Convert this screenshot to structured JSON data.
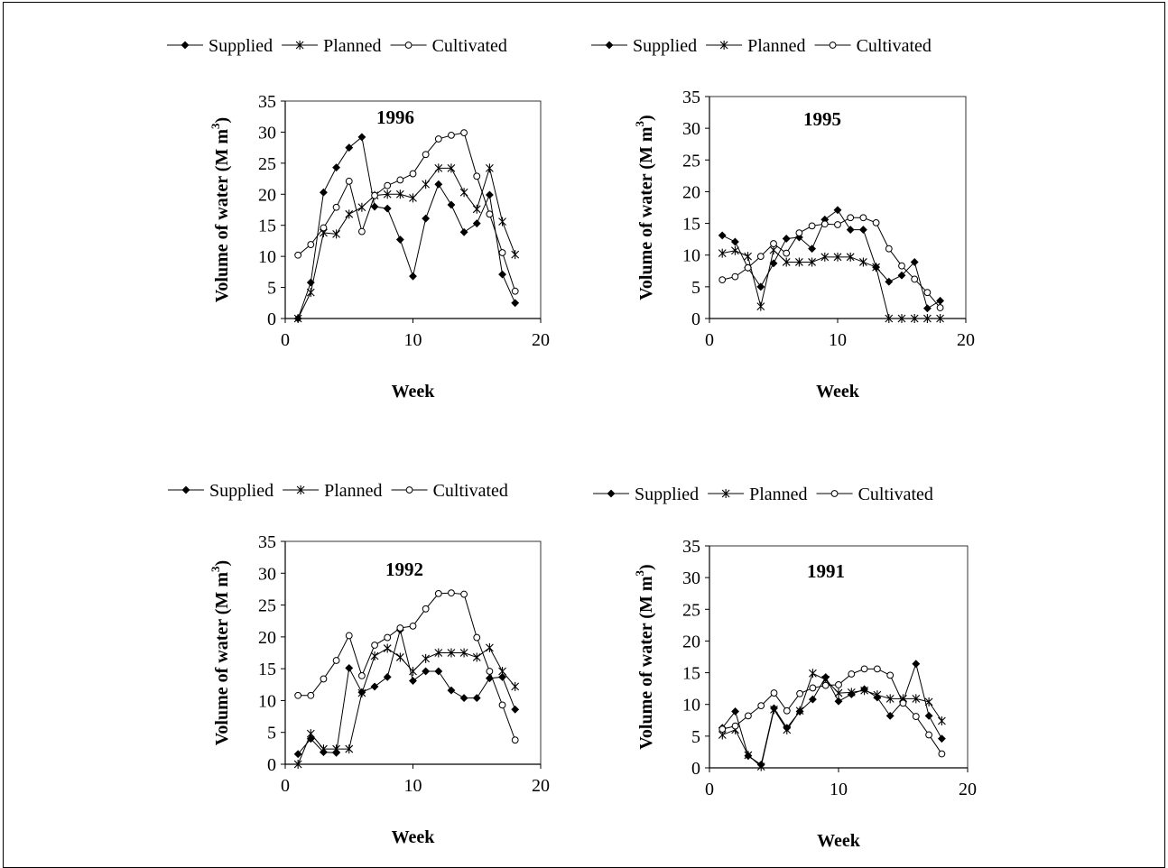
{
  "legend_labels": [
    "Supplied",
    "Planned",
    "Cultivated"
  ],
  "chart_data": [
    {
      "type": "line",
      "title": "1996",
      "xlabel": "Week",
      "ylabel": "Volume of water (M m",
      "ylabel_sup": "3",
      "ylabel_close": ")",
      "xlim": [
        0,
        20
      ],
      "ylim": [
        0,
        35
      ],
      "xticks": [
        0,
        10,
        20
      ],
      "yticks": [
        0,
        5,
        10,
        15,
        20,
        25,
        30,
        35
      ],
      "grid": false,
      "legend": "top",
      "x": [
        1,
        2,
        3,
        4,
        5,
        6,
        7,
        8,
        9,
        10,
        11,
        12,
        13,
        14,
        15,
        16,
        17,
        18
      ],
      "series": [
        {
          "name": "Supplied",
          "marker": "diamond",
          "values": [
            0,
            5.8,
            20.3,
            24.3,
            27.5,
            29.2,
            18,
            17.7,
            12.7,
            6.8,
            16.1,
            21.6,
            18.3,
            13.9,
            15.3,
            19.9,
            7.1,
            2.5
          ]
        },
        {
          "name": "Planned",
          "marker": "star",
          "values": [
            0,
            4.2,
            13.8,
            13.6,
            16.8,
            17.9,
            19.8,
            20,
            20,
            19.4,
            21.6,
            24.2,
            24.2,
            20.3,
            17.6,
            24.2,
            15.6,
            10.3
          ]
        },
        {
          "name": "Cultivated",
          "marker": "circle",
          "values": [
            10.2,
            11.9,
            14.6,
            17.9,
            22.1,
            14,
            19.8,
            21.4,
            22.3,
            23.3,
            26.4,
            28.9,
            29.5,
            29.9,
            22.9,
            16.8,
            10.6,
            4.4
          ]
        }
      ]
    },
    {
      "type": "line",
      "title": "1995",
      "xlabel": "Week",
      "ylabel": "Volume of water (M m",
      "ylabel_sup": "3",
      "ylabel_close": ")",
      "xlim": [
        0,
        20
      ],
      "ylim": [
        0,
        35
      ],
      "xticks": [
        0,
        10,
        20
      ],
      "yticks": [
        0,
        5,
        10,
        15,
        20,
        25,
        30,
        35
      ],
      "grid": false,
      "legend": "top",
      "x": [
        1,
        2,
        3,
        4,
        5,
        6,
        7,
        8,
        9,
        10,
        11,
        12,
        13,
        14,
        15,
        16,
        17,
        18
      ],
      "series": [
        {
          "name": "Supplied",
          "marker": "diamond",
          "values": [
            13.1,
            12.1,
            8,
            5,
            8.7,
            12.6,
            12.8,
            11,
            15.6,
            17.1,
            14,
            14,
            8.1,
            5.8,
            6.8,
            8.9,
            1.6,
            2.8
          ]
        },
        {
          "name": "Planned",
          "marker": "star",
          "values": [
            10.3,
            10.7,
            9.8,
            1.9,
            10.8,
            8.9,
            8.9,
            8.9,
            9.7,
            9.7,
            9.7,
            8.9,
            8.1,
            0,
            0,
            0,
            0,
            0
          ]
        },
        {
          "name": "Cultivated",
          "marker": "circle",
          "values": [
            6.1,
            6.6,
            8,
            9.8,
            11.8,
            10.3,
            13.5,
            14.6,
            14.9,
            14.8,
            15.9,
            15.9,
            15.1,
            11,
            8.3,
            6.2,
            4.1,
            1.7
          ]
        }
      ]
    },
    {
      "type": "line",
      "title": "1992",
      "xlabel": "Week",
      "ylabel": "Volume of water (M m",
      "ylabel_sup": "3",
      "ylabel_close": ")",
      "xlim": [
        0,
        20
      ],
      "ylim": [
        0,
        35
      ],
      "xticks": [
        0,
        10,
        20
      ],
      "yticks": [
        0,
        5,
        10,
        15,
        20,
        25,
        30,
        35
      ],
      "grid": false,
      "legend": "top",
      "x": [
        1,
        2,
        3,
        4,
        5,
        6,
        7,
        8,
        9,
        10,
        11,
        12,
        13,
        14,
        15,
        16,
        17,
        18
      ],
      "series": [
        {
          "name": "Supplied",
          "marker": "diamond",
          "values": [
            1.6,
            4,
            1.9,
            1.8,
            15.1,
            11.3,
            12.2,
            13.7,
            21.1,
            13.1,
            14.6,
            14.6,
            11.6,
            10.4,
            10.4,
            13.5,
            13.7,
            8.6
          ]
        },
        {
          "name": "Planned",
          "marker": "star",
          "values": [
            0,
            4.8,
            2.4,
            2.4,
            2.4,
            11.2,
            17,
            18.2,
            16.8,
            14.6,
            16.6,
            17.5,
            17.5,
            17.5,
            16.8,
            18.3,
            14.6,
            12.2
          ]
        },
        {
          "name": "Cultivated",
          "marker": "circle",
          "values": [
            10.8,
            10.8,
            13.4,
            16.3,
            20.2,
            13.9,
            18.7,
            19.9,
            21.4,
            21.7,
            24.4,
            26.8,
            26.9,
            26.7,
            19.9,
            14.6,
            9.3,
            3.8
          ]
        }
      ]
    },
    {
      "type": "line",
      "title": "1991",
      "xlabel": "Week",
      "ylabel": "Volume of water (M m",
      "ylabel_sup": "3",
      "ylabel_close": ")",
      "xlim": [
        0,
        20
      ],
      "ylim": [
        0,
        35
      ],
      "xticks": [
        0,
        10,
        20
      ],
      "yticks": [
        0,
        5,
        10,
        15,
        20,
        25,
        30,
        35
      ],
      "grid": false,
      "legend": "top",
      "x": [
        1,
        2,
        3,
        4,
        5,
        6,
        7,
        8,
        9,
        10,
        11,
        12,
        13,
        14,
        15,
        16,
        17,
        18
      ],
      "series": [
        {
          "name": "Supplied",
          "marker": "diamond",
          "values": [
            6.3,
            8.9,
            1.9,
            0.5,
            9.4,
            6.3,
            8.9,
            10.8,
            14.3,
            10.5,
            11.6,
            12.4,
            11.1,
            8.2,
            10.5,
            16.4,
            8.2,
            4.6
          ]
        },
        {
          "name": "Planned",
          "marker": "star",
          "values": [
            5.2,
            6,
            2,
            0.2,
            9.2,
            6,
            9,
            14.9,
            13.9,
            11.8,
            11.9,
            12.2,
            11.5,
            10.9,
            10.9,
            10.9,
            10.4,
            7.4
          ]
        },
        {
          "name": "Cultivated",
          "marker": "circle",
          "values": [
            6.1,
            6.6,
            8.2,
            9.8,
            11.8,
            9,
            11.7,
            12.6,
            13,
            13.1,
            14.8,
            15.6,
            15.6,
            14.6,
            10.2,
            8.1,
            5.2,
            2.2
          ]
        }
      ]
    }
  ]
}
